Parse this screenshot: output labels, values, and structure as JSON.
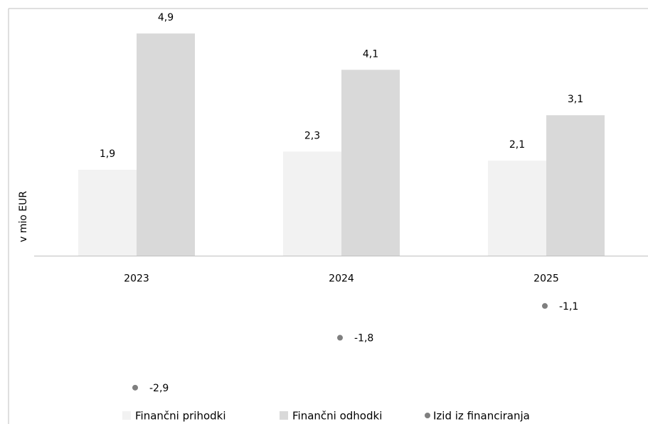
{
  "chart_data": {
    "type": "bar",
    "y_label": "v mio EUR",
    "categories": [
      "2023",
      "2024",
      "2025"
    ],
    "series": [
      {
        "name": "Finančni prihodki",
        "type": "bar",
        "color": "#f2f2f2",
        "values": [
          1.9,
          2.3,
          2.1
        ],
        "value_labels": [
          "1,9",
          "2,3",
          "2,1"
        ]
      },
      {
        "name": "Finančni odhodki",
        "type": "bar",
        "color": "#d9d9d9",
        "values": [
          4.9,
          4.1,
          3.1
        ],
        "value_labels": [
          "4,9",
          "4,1",
          "3,1"
        ]
      },
      {
        "name": "Izid iz financiranja",
        "type": "scatter",
        "color": "#7f7f7f",
        "values": [
          -2.9,
          -1.8,
          -1.1
        ],
        "value_labels": [
          "-2,9",
          "-1,8",
          "-1,1"
        ]
      }
    ],
    "ylim": [
      -3.7,
      5.45
    ],
    "legend": "bottom"
  }
}
